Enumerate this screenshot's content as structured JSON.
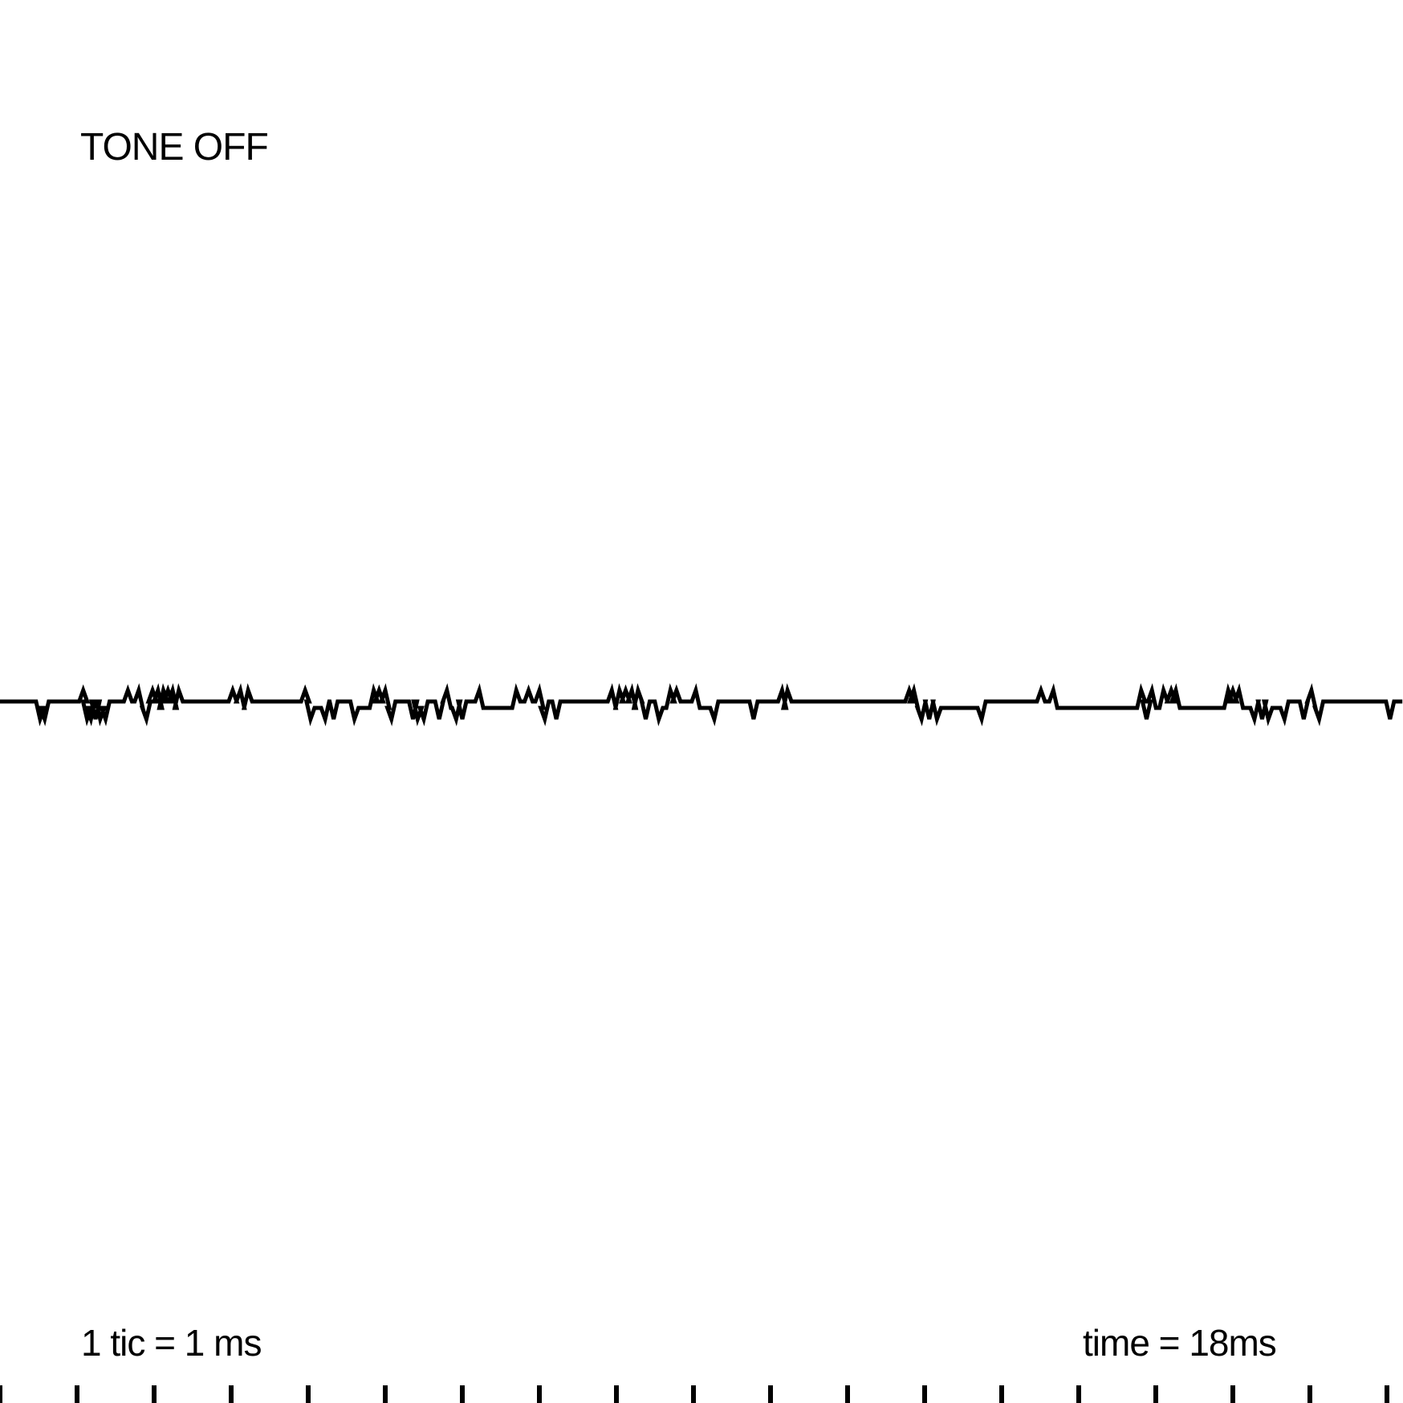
{
  "status": "TONE OFF",
  "scale_note": "1 tic = 1 ms",
  "time_readout": "time = 18ms",
  "colors": {
    "trace": "#000000",
    "background": "#ffffff"
  },
  "chart_data": {
    "type": "line",
    "title": "",
    "xlabel": "",
    "ylabel": "",
    "x_unit": "ms",
    "xlim": [
      0,
      18.2
    ],
    "ylim": [
      -1,
      1
    ],
    "grid": false,
    "baseline_levels": [
      -0.08,
      0.0
    ],
    "events": [
      {
        "t": 0.52,
        "dir": -1
      },
      {
        "t": 0.58,
        "dir": -1
      },
      {
        "t": 1.08,
        "dir": 1
      },
      {
        "t": 1.13,
        "dir": -1
      },
      {
        "t": 1.18,
        "dir": -1
      },
      {
        "t": 1.24,
        "dir": -1
      },
      {
        "t": 1.3,
        "dir": -1
      },
      {
        "t": 1.37,
        "dir": -1
      },
      {
        "t": 1.66,
        "dir": 1
      },
      {
        "t": 1.8,
        "dir": 1
      },
      {
        "t": 1.9,
        "dir": -1
      },
      {
        "t": 1.98,
        "dir": 1
      },
      {
        "t": 2.05,
        "dir": 1
      },
      {
        "t": 2.12,
        "dir": 1
      },
      {
        "t": 2.18,
        "dir": 1
      },
      {
        "t": 2.24,
        "dir": 1
      },
      {
        "t": 2.32,
        "dir": 1
      },
      {
        "t": 3.02,
        "dir": 1
      },
      {
        "t": 3.12,
        "dir": 1
      },
      {
        "t": 3.22,
        "dir": 1
      },
      {
        "t": 3.96,
        "dir": 1
      },
      {
        "t": 4.03,
        "dir": -1
      },
      {
        "t": 4.22,
        "dir": -1
      },
      {
        "t": 4.33,
        "dir": -1
      },
      {
        "t": 4.6,
        "dir": -1
      },
      {
        "t": 4.85,
        "dir": 1
      },
      {
        "t": 4.92,
        "dir": 1
      },
      {
        "t": 5.0,
        "dir": 1
      },
      {
        "t": 5.08,
        "dir": -1
      },
      {
        "t": 5.36,
        "dir": -1
      },
      {
        "t": 5.42,
        "dir": -1
      },
      {
        "t": 5.5,
        "dir": -1
      },
      {
        "t": 5.7,
        "dir": -1
      },
      {
        "t": 5.8,
        "dir": 1
      },
      {
        "t": 5.92,
        "dir": -1
      },
      {
        "t": 6.0,
        "dir": -1
      },
      {
        "t": 6.22,
        "dir": 1
      },
      {
        "t": 6.7,
        "dir": 1
      },
      {
        "t": 6.86,
        "dir": 1
      },
      {
        "t": 7.0,
        "dir": 1
      },
      {
        "t": 7.07,
        "dir": -1
      },
      {
        "t": 7.22,
        "dir": -1
      },
      {
        "t": 7.94,
        "dir": 1
      },
      {
        "t": 8.04,
        "dir": 1
      },
      {
        "t": 8.12,
        "dir": 1
      },
      {
        "t": 8.2,
        "dir": 1
      },
      {
        "t": 8.28,
        "dir": 1
      },
      {
        "t": 8.38,
        "dir": -1
      },
      {
        "t": 8.55,
        "dir": -1
      },
      {
        "t": 8.7,
        "dir": 1
      },
      {
        "t": 8.78,
        "dir": 1
      },
      {
        "t": 9.03,
        "dir": 1
      },
      {
        "t": 9.27,
        "dir": -1
      },
      {
        "t": 9.78,
        "dir": -1
      },
      {
        "t": 10.15,
        "dir": 1
      },
      {
        "t": 10.22,
        "dir": 1
      },
      {
        "t": 11.8,
        "dir": 1
      },
      {
        "t": 11.86,
        "dir": 1
      },
      {
        "t": 11.96,
        "dir": -1
      },
      {
        "t": 12.06,
        "dir": -1
      },
      {
        "t": 12.16,
        "dir": -1
      },
      {
        "t": 12.74,
        "dir": -1
      },
      {
        "t": 13.51,
        "dir": 1
      },
      {
        "t": 13.67,
        "dir": 1
      },
      {
        "t": 14.81,
        "dir": 1
      },
      {
        "t": 14.88,
        "dir": -1
      },
      {
        "t": 14.95,
        "dir": 1
      },
      {
        "t": 15.1,
        "dir": 1
      },
      {
        "t": 15.2,
        "dir": 1
      },
      {
        "t": 15.26,
        "dir": 1
      },
      {
        "t": 15.94,
        "dir": 1
      },
      {
        "t": 16.0,
        "dir": 1
      },
      {
        "t": 16.08,
        "dir": 1
      },
      {
        "t": 16.28,
        "dir": -1
      },
      {
        "t": 16.38,
        "dir": -1
      },
      {
        "t": 16.46,
        "dir": -1
      },
      {
        "t": 16.67,
        "dir": -1
      },
      {
        "t": 16.92,
        "dir": -1
      },
      {
        "t": 17.02,
        "dir": 1
      },
      {
        "t": 17.12,
        "dir": -1
      },
      {
        "t": 18.04,
        "dir": -1
      }
    ],
    "tick_interval_ms": 1
  }
}
